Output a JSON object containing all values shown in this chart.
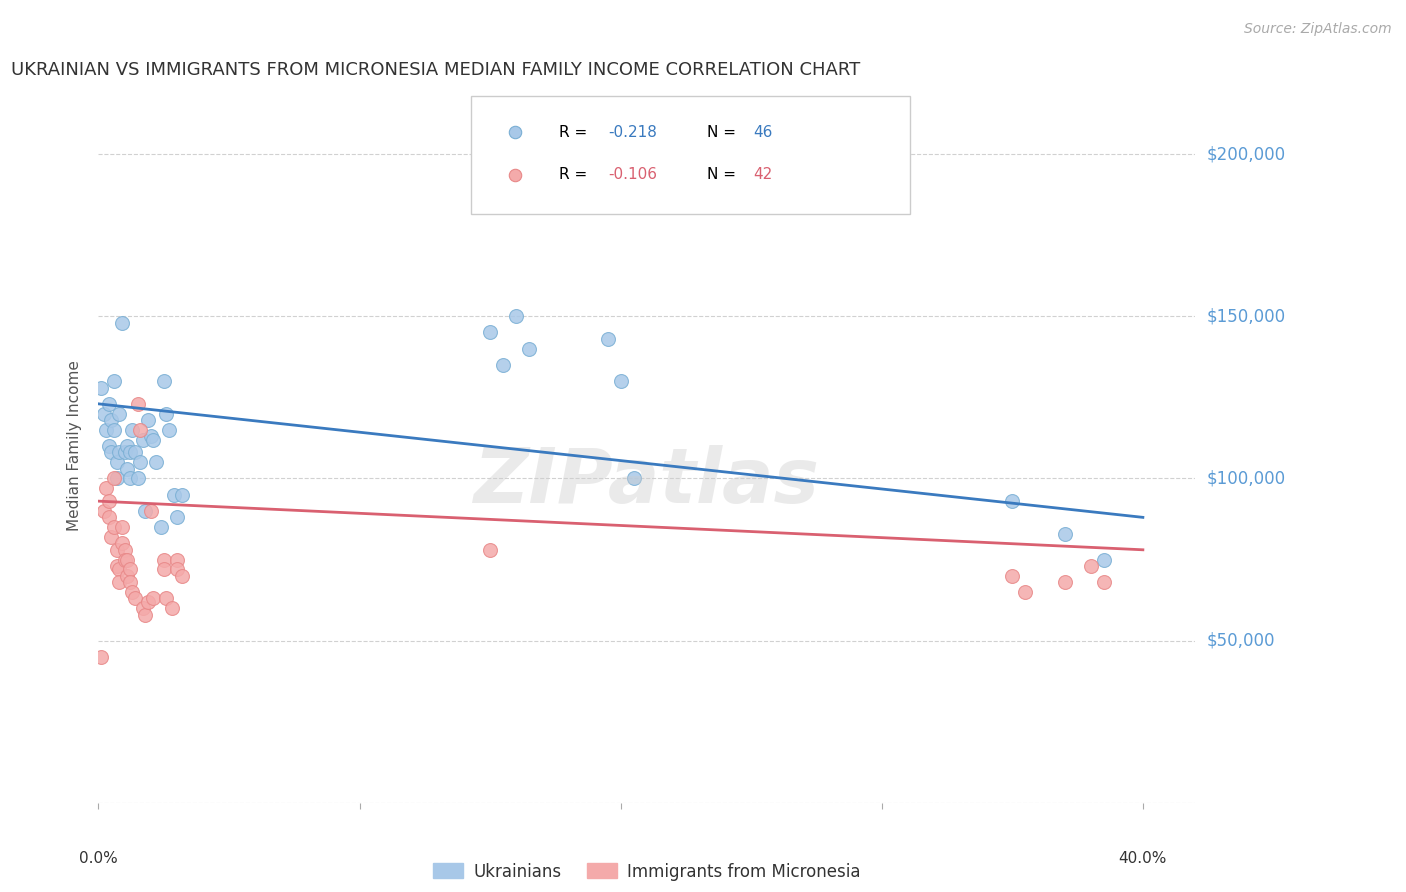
{
  "title": "UKRAINIAN VS IMMIGRANTS FROM MICRONESIA MEDIAN FAMILY INCOME CORRELATION CHART",
  "source": "Source: ZipAtlas.com",
  "ylabel": "Median Family Income",
  "yticks": [
    0,
    50000,
    100000,
    150000,
    200000
  ],
  "ytick_labels": [
    "",
    "$50,000",
    "$100,000",
    "$150,000",
    "$200,000"
  ],
  "xtick_positions": [
    0.0,
    0.1,
    0.2,
    0.3,
    0.4
  ],
  "xtick_labels": [
    "0.0%",
    "",
    "",
    "",
    "40.0%"
  ],
  "xlim": [
    0.0,
    0.42
  ],
  "ylim": [
    0,
    220000
  ],
  "watermark": "ZIPatlas",
  "legend1_r": "-0.218",
  "legend1_n": "46",
  "legend2_r": "-0.106",
  "legend2_n": "42",
  "legend_bottom1": "Ukrainians",
  "legend_bottom2": "Immigrants from Micronesia",
  "blue_color": "#a8c8e8",
  "pink_color": "#f4aaaa",
  "blue_edge_color": "#7aafd4",
  "pink_edge_color": "#e88888",
  "blue_line_color": "#3a7abf",
  "pink_line_color": "#d96070",
  "blue_scatter": [
    [
      0.001,
      128000
    ],
    [
      0.002,
      120000
    ],
    [
      0.003,
      115000
    ],
    [
      0.004,
      110000
    ],
    [
      0.004,
      123000
    ],
    [
      0.005,
      108000
    ],
    [
      0.005,
      118000
    ],
    [
      0.006,
      115000
    ],
    [
      0.006,
      130000
    ],
    [
      0.007,
      100000
    ],
    [
      0.007,
      105000
    ],
    [
      0.008,
      120000
    ],
    [
      0.008,
      108000
    ],
    [
      0.009,
      148000
    ],
    [
      0.01,
      108000
    ],
    [
      0.011,
      110000
    ],
    [
      0.011,
      103000
    ],
    [
      0.012,
      100000
    ],
    [
      0.012,
      108000
    ],
    [
      0.013,
      115000
    ],
    [
      0.014,
      108000
    ],
    [
      0.015,
      100000
    ],
    [
      0.016,
      105000
    ],
    [
      0.017,
      112000
    ],
    [
      0.018,
      90000
    ],
    [
      0.019,
      118000
    ],
    [
      0.02,
      113000
    ],
    [
      0.021,
      112000
    ],
    [
      0.022,
      105000
    ],
    [
      0.024,
      85000
    ],
    [
      0.025,
      130000
    ],
    [
      0.026,
      120000
    ],
    [
      0.027,
      115000
    ],
    [
      0.029,
      95000
    ],
    [
      0.03,
      88000
    ],
    [
      0.032,
      95000
    ],
    [
      0.15,
      145000
    ],
    [
      0.155,
      135000
    ],
    [
      0.16,
      150000
    ],
    [
      0.165,
      140000
    ],
    [
      0.195,
      143000
    ],
    [
      0.2,
      130000
    ],
    [
      0.205,
      100000
    ],
    [
      0.35,
      93000
    ],
    [
      0.37,
      83000
    ],
    [
      0.385,
      75000
    ]
  ],
  "pink_scatter": [
    [
      0.001,
      45000
    ],
    [
      0.002,
      90000
    ],
    [
      0.003,
      97000
    ],
    [
      0.004,
      93000
    ],
    [
      0.004,
      88000
    ],
    [
      0.005,
      82000
    ],
    [
      0.006,
      100000
    ],
    [
      0.006,
      85000
    ],
    [
      0.007,
      78000
    ],
    [
      0.007,
      73000
    ],
    [
      0.008,
      72000
    ],
    [
      0.008,
      68000
    ],
    [
      0.009,
      85000
    ],
    [
      0.009,
      80000
    ],
    [
      0.01,
      78000
    ],
    [
      0.01,
      75000
    ],
    [
      0.011,
      70000
    ],
    [
      0.011,
      75000
    ],
    [
      0.012,
      72000
    ],
    [
      0.012,
      68000
    ],
    [
      0.013,
      65000
    ],
    [
      0.014,
      63000
    ],
    [
      0.015,
      123000
    ],
    [
      0.016,
      115000
    ],
    [
      0.017,
      60000
    ],
    [
      0.018,
      58000
    ],
    [
      0.019,
      62000
    ],
    [
      0.02,
      90000
    ],
    [
      0.021,
      63000
    ],
    [
      0.025,
      75000
    ],
    [
      0.025,
      72000
    ],
    [
      0.026,
      63000
    ],
    [
      0.028,
      60000
    ],
    [
      0.03,
      75000
    ],
    [
      0.03,
      72000
    ],
    [
      0.032,
      70000
    ],
    [
      0.15,
      78000
    ],
    [
      0.35,
      70000
    ],
    [
      0.355,
      65000
    ],
    [
      0.37,
      68000
    ],
    [
      0.38,
      73000
    ],
    [
      0.385,
      68000
    ]
  ],
  "blue_line_x": [
    0.0,
    0.4
  ],
  "blue_line_y": [
    123000,
    88000
  ],
  "pink_line_x": [
    0.0,
    0.4
  ],
  "pink_line_y": [
    93000,
    78000
  ],
  "background_color": "#ffffff",
  "grid_color": "#cccccc",
  "title_color": "#333333",
  "axis_label_color": "#5b9bd5",
  "ylabel_color": "#555555",
  "xtick_color": "#333333"
}
